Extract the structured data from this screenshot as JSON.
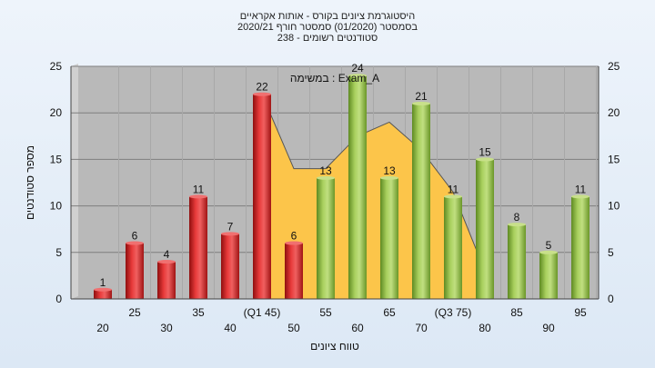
{
  "title_lines": [
    "היסטוגרמת ציונים בקורס - אותות אקראיים",
    "בסמסטר  (01/2020)  סמסטר חורף 2020/21",
    "סטודנטים רשומים - 238"
  ],
  "legend_text": "במשימה : Exam_A",
  "colors": {
    "bar_red": "#d42828",
    "bar_green": "#8cb845",
    "area": "#fcc54a",
    "plot_bg": "#b9b9b9",
    "grid": "#7f7f7f"
  },
  "chart_data": {
    "type": "bar",
    "categories": [
      "20",
      "25",
      "30",
      "35",
      "40",
      "(Q1 45)",
      "50",
      "55",
      "60",
      "65",
      "70",
      "(Q3 75)",
      "80",
      "85",
      "90",
      "95"
    ],
    "values": [
      1,
      6,
      4,
      11,
      7,
      22,
      6,
      13,
      24,
      13,
      21,
      11,
      15,
      8,
      5,
      11
    ],
    "bar_colors": [
      "red",
      "red",
      "red",
      "red",
      "red",
      "red",
      "red",
      "green",
      "green",
      "green",
      "green",
      "green",
      "green",
      "green",
      "green",
      "green"
    ],
    "area_series": [
      {
        "x": "(Q1 45)",
        "y": 22
      },
      {
        "x": "50",
        "y": 14
      },
      {
        "x": "55",
        "y": 14
      },
      {
        "x": "60",
        "y": 17.5
      },
      {
        "x": "65",
        "y": 19
      },
      {
        "x": "70",
        "y": 16
      },
      {
        "x": "(Q3 75)",
        "y": 11.5
      },
      {
        "x": "80",
        "y": 3
      }
    ],
    "xlabel": "טווח ציונים",
    "ylabel": "מספר סטודנטים",
    "ylim": [
      0,
      25
    ],
    "yticks": [
      0,
      5,
      10,
      15,
      20,
      25
    ],
    "grid": true
  }
}
